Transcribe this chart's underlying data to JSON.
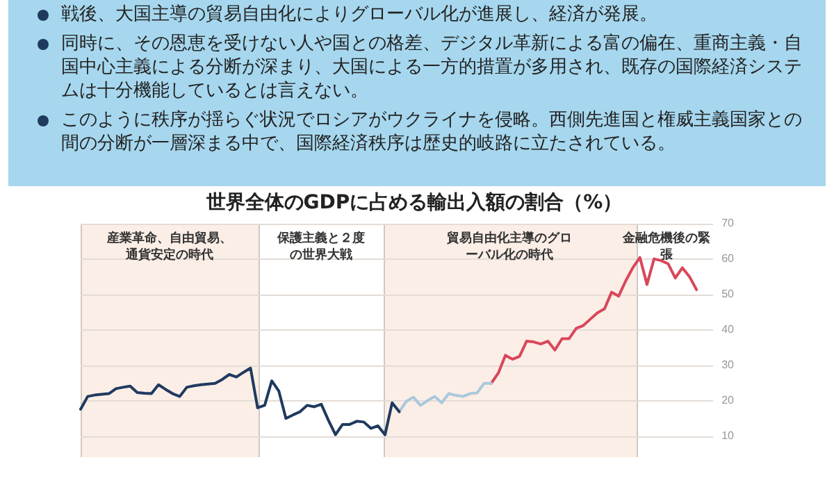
{
  "chart_data": {
    "type": "line",
    "title": "世界全体のGDPに占める輸出入額の割合（%）",
    "annotations": [
      "戦後、大国主導の貿易自由化によりグローバル化が進展し、経済が発展。",
      "同時に、その恩恵を受けない人や国との格差、デジタル革新による富の偏在、重商主義・自国中心主義による分断が深まり、大国による一方的措置が多用され、既存の国際経済システムは十分機能しているとは言えない。",
      "このように秩序が揺らぐ状況でロシアがウクライナを侵略。西側先進国と権威主義国家との間の分断が一層深まる中で、国際経済秩序は歴史的岐路に立たされている。",
      "産業革命、自由貿易、通貨安定の時代",
      "保護主義と２度の世界大戦",
      "貿易自由化主導のグローバル化の時代",
      "金融危機後の緊張"
    ],
    "categories": [
      null,
      null,
      null,
      null,
      null,
      null,
      null,
      null,
      null,
      null,
      null,
      null,
      null,
      null,
      null,
      null,
      null,
      null,
      null,
      null,
      null,
      null,
      null,
      null,
      null,
      null,
      null,
      null,
      null,
      null,
      null,
      null,
      null,
      null,
      null,
      null,
      null,
      null,
      null,
      null,
      null,
      null,
      null,
      null,
      null,
      null,
      null,
      null,
      null,
      null,
      null,
      null,
      null,
      null,
      null,
      null,
      null,
      null,
      null,
      null,
      null,
      null,
      null,
      null,
      null,
      null,
      null,
      null,
      null,
      null,
      null,
      null,
      null,
      null,
      null,
      null,
      null,
      null,
      null,
      null,
      null,
      null,
      null,
      null,
      null,
      null,
      null,
      null
    ],
    "series": [
      {
        "color": "#1f3a5f",
        "values": [
          17.6,
          21.2,
          21.6,
          21.8,
          22,
          23.4,
          23.8,
          24.1,
          22.3,
          22.1,
          22,
          24.5,
          23.2,
          22,
          21.2,
          23.8,
          24.2,
          24.5,
          24.7,
          24.9,
          26,
          27.4,
          26.7,
          28,
          29.2,
          18,
          18.7,
          25.6,
          22.7,
          15,
          16,
          16.9,
          18.7,
          18.3,
          19,
          14.5,
          10.4,
          13.3,
          13.3,
          14.2,
          14,
          12.2,
          12.9,
          10.4,
          19.4,
          16.9,
          null,
          null,
          null,
          null,
          null,
          null,
          null,
          null,
          null,
          null,
          null,
          null,
          null,
          null,
          null,
          null,
          null,
          null,
          null,
          null,
          null,
          null,
          null,
          null,
          null,
          null,
          null,
          null,
          null,
          null,
          null,
          null,
          null,
          null,
          null,
          null,
          null,
          null,
          null,
          null,
          null,
          null
        ]
      },
      {
        "color": "#a9c8dc",
        "values": [
          null,
          null,
          null,
          null,
          null,
          null,
          null,
          null,
          null,
          null,
          null,
          null,
          null,
          null,
          null,
          null,
          null,
          null,
          null,
          null,
          null,
          null,
          null,
          null,
          null,
          null,
          null,
          null,
          null,
          null,
          null,
          null,
          null,
          null,
          null,
          null,
          null,
          null,
          null,
          null,
          null,
          null,
          null,
          null,
          null,
          16.9,
          19.8,
          21,
          18.7,
          20,
          21.2,
          19.4,
          22,
          21.5,
          21.2,
          22,
          22.2,
          24.9,
          24.9,
          null,
          null,
          null,
          null,
          null,
          null,
          null,
          null,
          null,
          null,
          null,
          null,
          null,
          null,
          null,
          null,
          null,
          null,
          null,
          null,
          null,
          null,
          null,
          null,
          null,
          null,
          null,
          null,
          null
        ]
      },
      {
        "color": "#d9475a",
        "values": [
          null,
          null,
          null,
          null,
          null,
          null,
          null,
          null,
          null,
          null,
          null,
          null,
          null,
          null,
          null,
          null,
          null,
          null,
          null,
          null,
          null,
          null,
          null,
          null,
          null,
          null,
          null,
          null,
          null,
          null,
          null,
          null,
          null,
          null,
          null,
          null,
          null,
          null,
          null,
          null,
          null,
          null,
          null,
          null,
          null,
          null,
          null,
          null,
          null,
          null,
          null,
          null,
          null,
          null,
          null,
          null,
          null,
          null,
          24.9,
          27.8,
          32.8,
          31.7,
          32.5,
          36.8,
          36.6,
          36,
          36.8,
          34.3,
          37.5,
          37.5,
          40.4,
          41.2,
          43,
          44.8,
          45.9,
          50.6,
          49.5,
          53.8,
          57.5,
          60.4,
          52.8,
          60,
          59.5,
          58.6,
          54.6,
          57.5,
          55,
          51.3
        ]
      }
    ],
    "ylim": [
      4,
      70
    ],
    "yticks": [
      10,
      20,
      30,
      40,
      50,
      60,
      70
    ],
    "tick_labels": "y",
    "grid": "y"
  }
}
